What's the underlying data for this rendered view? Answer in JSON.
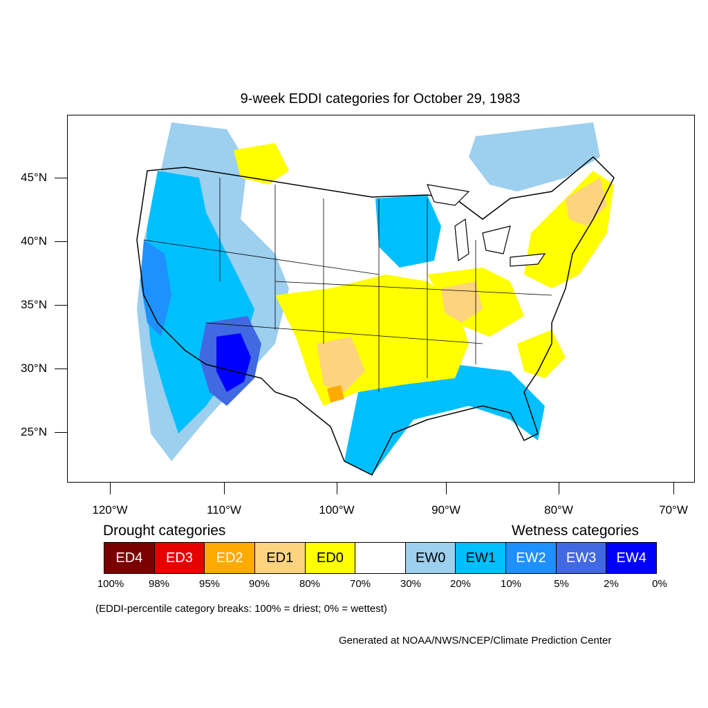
{
  "title": "9-week EDDI categories for October 29, 1983",
  "map": {
    "latitude_labels": [
      "45°N",
      "40°N",
      "35°N",
      "30°N",
      "25°N"
    ],
    "longitude_labels": [
      "120°W",
      "110°W",
      "100°W",
      "90°W",
      "80°W",
      "70°W"
    ]
  },
  "legend": {
    "drought_title": "Drought categories",
    "wetness_title": "Wetness categories",
    "categories": [
      {
        "label": "ED4",
        "color": "#7a0000",
        "text_color": "#ffffff"
      },
      {
        "label": "ED3",
        "color": "#e60000",
        "text_color": "#ffffff"
      },
      {
        "label": "ED2",
        "color": "#ffaa00",
        "text_color": "#ffffff"
      },
      {
        "label": "ED1",
        "color": "#fcd37f",
        "text_color": "#000000"
      },
      {
        "label": "ED0",
        "color": "#ffff00",
        "text_color": "#000000"
      },
      {
        "label": "",
        "color": "#ffffff",
        "text_color": "#000000"
      },
      {
        "label": "EW0",
        "color": "#9dcfee",
        "text_color": "#000000"
      },
      {
        "label": "EW1",
        "color": "#00bfff",
        "text_color": "#000000"
      },
      {
        "label": "EW2",
        "color": "#1e90ff",
        "text_color": "#ffffff"
      },
      {
        "label": "EW3",
        "color": "#4169e1",
        "text_color": "#ffffff"
      },
      {
        "label": "EW4",
        "color": "#0000ff",
        "text_color": "#ffffff"
      }
    ],
    "percentiles": [
      "100%",
      "98%",
      "95%",
      "90%",
      "80%",
      "70%",
      "30%",
      "20%",
      "10%",
      "5%",
      "2%",
      "0%"
    ],
    "note": "(EDDI-percentile category breaks: 100% = driest; 0% = wettest)"
  },
  "credit": "Generated at NOAA/NWS/NCEP/Climate Prediction Center"
}
